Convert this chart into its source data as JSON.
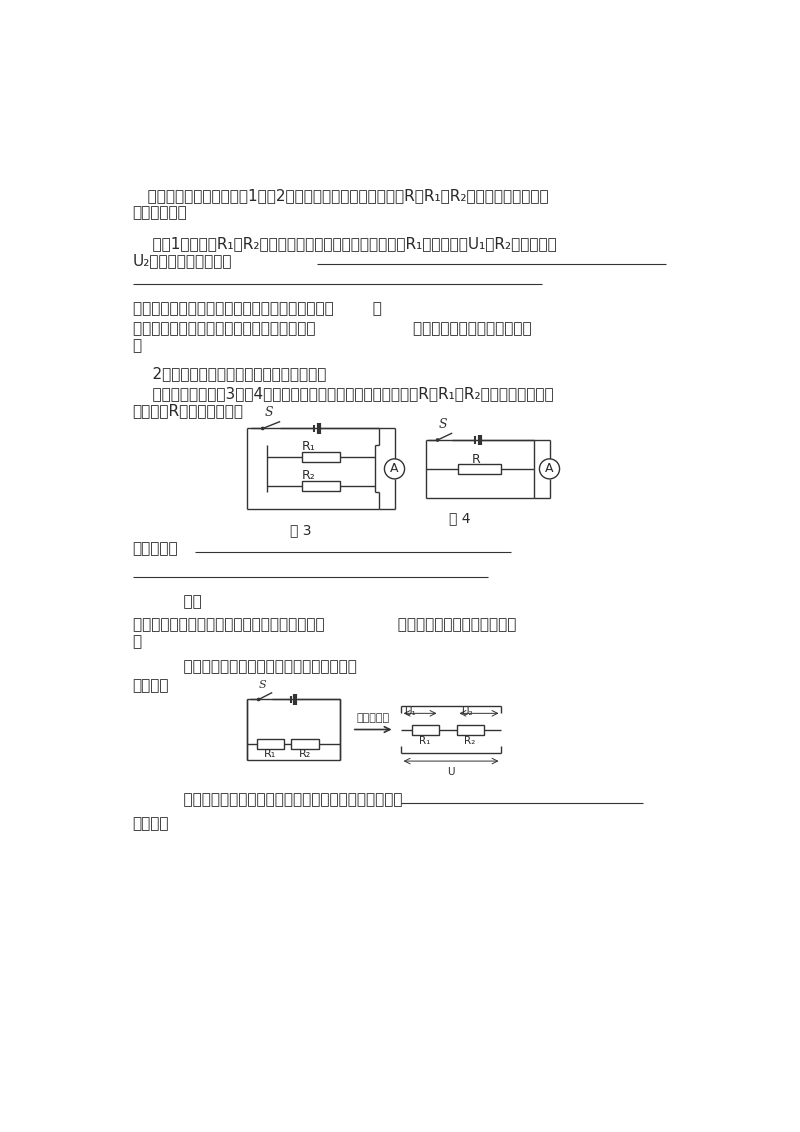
{
  "bg_color": "#ffffff",
  "text_color": "#2a2a2a",
  "line_color": "#333333",
  "para1": "   如果电源电压相同，在图1和图2中电流表示数相同，可以认为R为R₁和R₂串联后的等效电阻，",
  "para1b": "也称总电阻。",
  "para2": "    在图1中，因为R₁和R₂串联，因此通过它们的电流相同，设R₁两端电压为U₁，R₂两端电压为",
  "para2b": "U₂，则有（推导过程）",
  "para3": "因此可以得到有串联电路总电阻和分电阻的关系：        ，",
  "para4": "推论：串联电路的总电阻比任何一个分电阻都                    。串联后相当于增加了导体的",
  "para4b": "。",
  "section2": "    2．并联电路中等效电阻与各分电阻的关系",
  "para5": "    等效电阻电路如图3、图4所示。两个图中电流表示数相同，说明R和R₁、R₂并联的效果相同，",
  "para5b": "可以认为R是其等效电阻。",
  "label_fig3": "图 3",
  "label_fig4": "图 4",
  "para6": "推导过程：",
  "para7": "    即，",
  "para8": "推论：并联电路中，总电阻比任何一个分电阻都               。并联后相当于增加了导体的",
  "para8b": "。",
  "section3": "    补充：串联电路和并联电路电阻规律的应用",
  "section3b": "串联电路",
  "label_eq": "等效电路图",
  "para9": "    推论：串联电路具有分压作用，电阻两端电压之比等于                           ",
  "para9b": "并联电路"
}
